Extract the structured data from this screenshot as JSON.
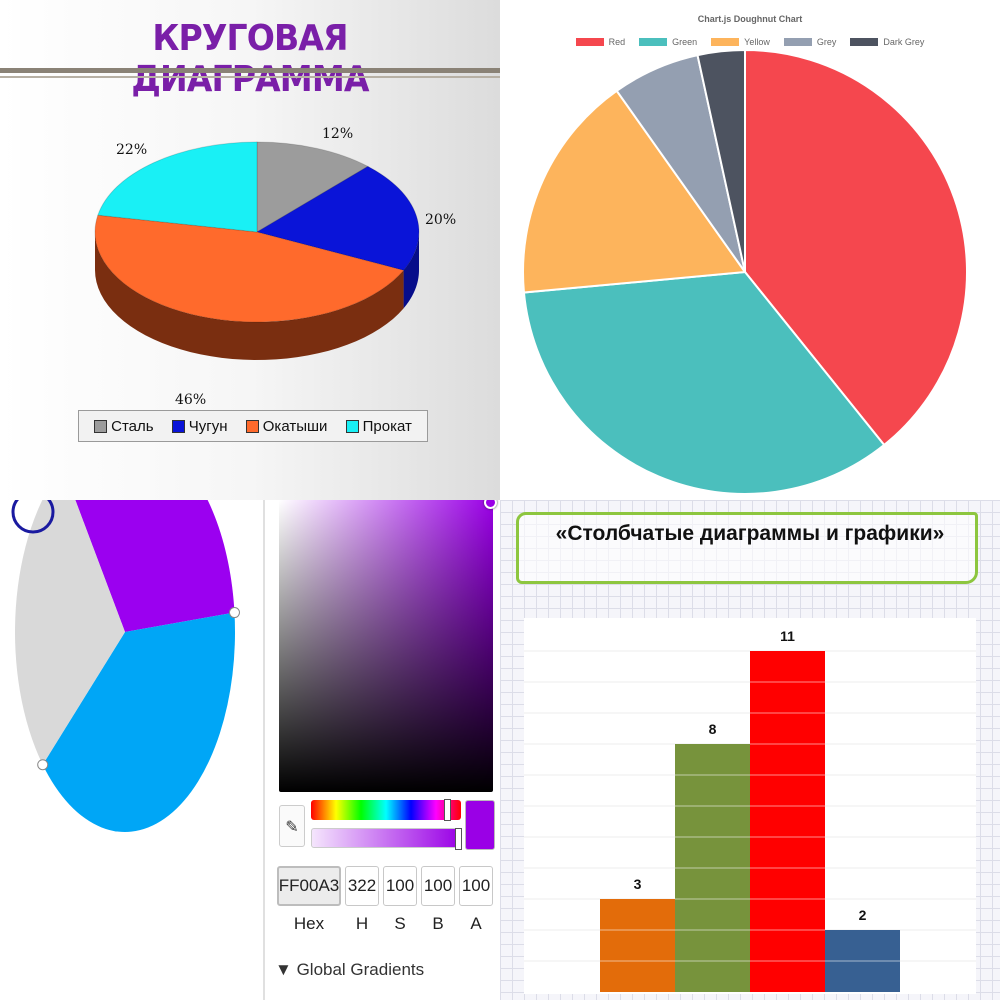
{
  "panel1": {
    "title": "КРУГОВАЯ ДИАГРАММА",
    "chart_data": {
      "type": "pie",
      "title": "КРУГОВАЯ ДИАГРАММА",
      "categories": [
        "Сталь",
        "Чугун",
        "Окатыши",
        "Прокат"
      ],
      "values": [
        12,
        20,
        46,
        22
      ],
      "value_labels": [
        "12%",
        "20%",
        "46%",
        "22%"
      ],
      "colors": [
        "#9c9c9c",
        "#0a14d8",
        "#ff6a2c",
        "#19f0f5"
      ],
      "side_colors": [
        "#5f5f5f",
        "#070d8a",
        "#7a2e10",
        "#0e9ea2"
      ],
      "legend_position": "bottom"
    }
  },
  "panel2": {
    "chart_data": {
      "type": "pie",
      "title": "Chart.js Doughnut Chart",
      "categories": [
        "Red",
        "Green",
        "Yellow",
        "Grey",
        "Dark Grey"
      ],
      "values": [
        40,
        35,
        17,
        6.5,
        3.5
      ],
      "colors": [
        "#f5474e",
        "#4bbfbd",
        "#fdb45c",
        "#949fb1",
        "#4d5360"
      ],
      "legend_position": "top"
    }
  },
  "panel3": {
    "pie": {
      "values": [
        33,
        40,
        27
      ],
      "colors": [
        "#9b00f0",
        "#00a6f6",
        "#d9d9d9"
      ]
    },
    "picker": {
      "current_color": "#9a00e6",
      "hue_position": 0.92,
      "alpha_position": 1.0,
      "eyedropper_icon": "eyedropper-icon",
      "fields": [
        {
          "label": "Hex",
          "value": "FF00A3"
        },
        {
          "label": "H",
          "value": "322"
        },
        {
          "label": "S",
          "value": "100"
        },
        {
          "label": "B",
          "value": "100"
        },
        {
          "label": "A",
          "value": "100"
        }
      ],
      "section": {
        "icon": "triangle-down-icon",
        "label": "Global Gradients"
      }
    }
  },
  "panel4": {
    "title": "«Столбчатые диаграммы и графики»",
    "chart_data": {
      "type": "bar",
      "title": "«Столбчатые диаграммы и графики»",
      "categories": [
        "",
        "",
        "",
        ""
      ],
      "values": [
        3,
        8,
        11,
        2
      ],
      "value_labels": [
        "3",
        "8",
        "11",
        "2"
      ],
      "colors": [
        "#e36c0a",
        "#77933c",
        "#ff0000",
        "#376092"
      ],
      "ylim": [
        0,
        11
      ]
    }
  }
}
